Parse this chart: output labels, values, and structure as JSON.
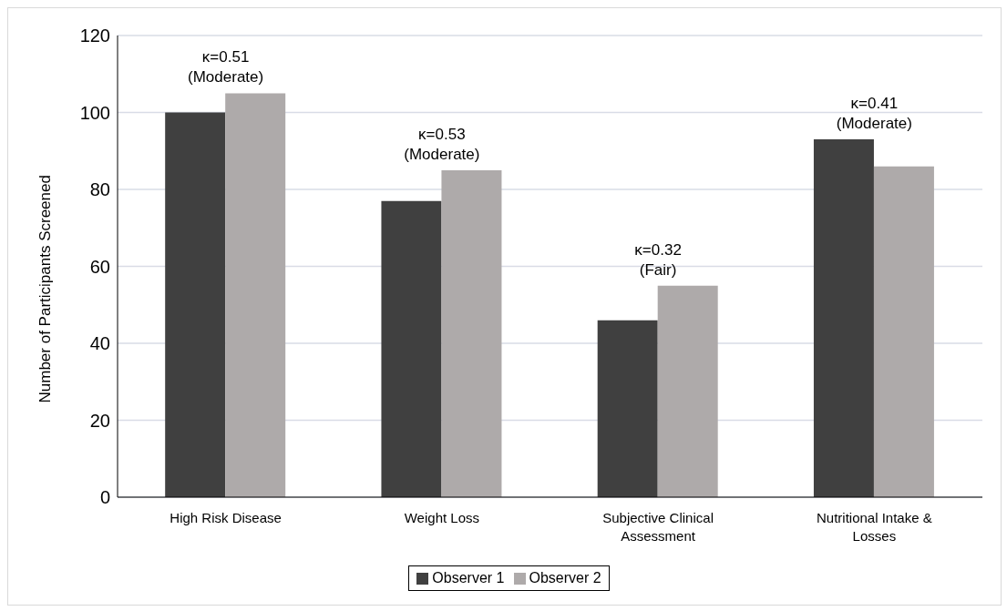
{
  "chart_data": {
    "type": "bar",
    "categories": [
      "High Risk Disease",
      "Weight Loss",
      "Subjective Clinical Assessment",
      "Nutritional Intake & Losses"
    ],
    "series": [
      {
        "name": "Observer 1",
        "color": "#404040",
        "values": [
          100,
          77,
          46,
          93
        ]
      },
      {
        "name": "Observer 2",
        "color": "#aeaaaa",
        "values": [
          105,
          85,
          55,
          86
        ]
      }
    ],
    "ylabel": "Number of Participants Screened",
    "ylim": [
      0,
      120
    ],
    "yticks": [
      0,
      20,
      40,
      60,
      80,
      100,
      120
    ],
    "annotations": [
      "κ=0.51\n(Moderate)",
      "κ=0.53\n(Moderate)",
      "κ=0.32\n(Fair)",
      "κ=0.41\n(Moderate)"
    ],
    "grid": "y",
    "legend": "bottom"
  }
}
